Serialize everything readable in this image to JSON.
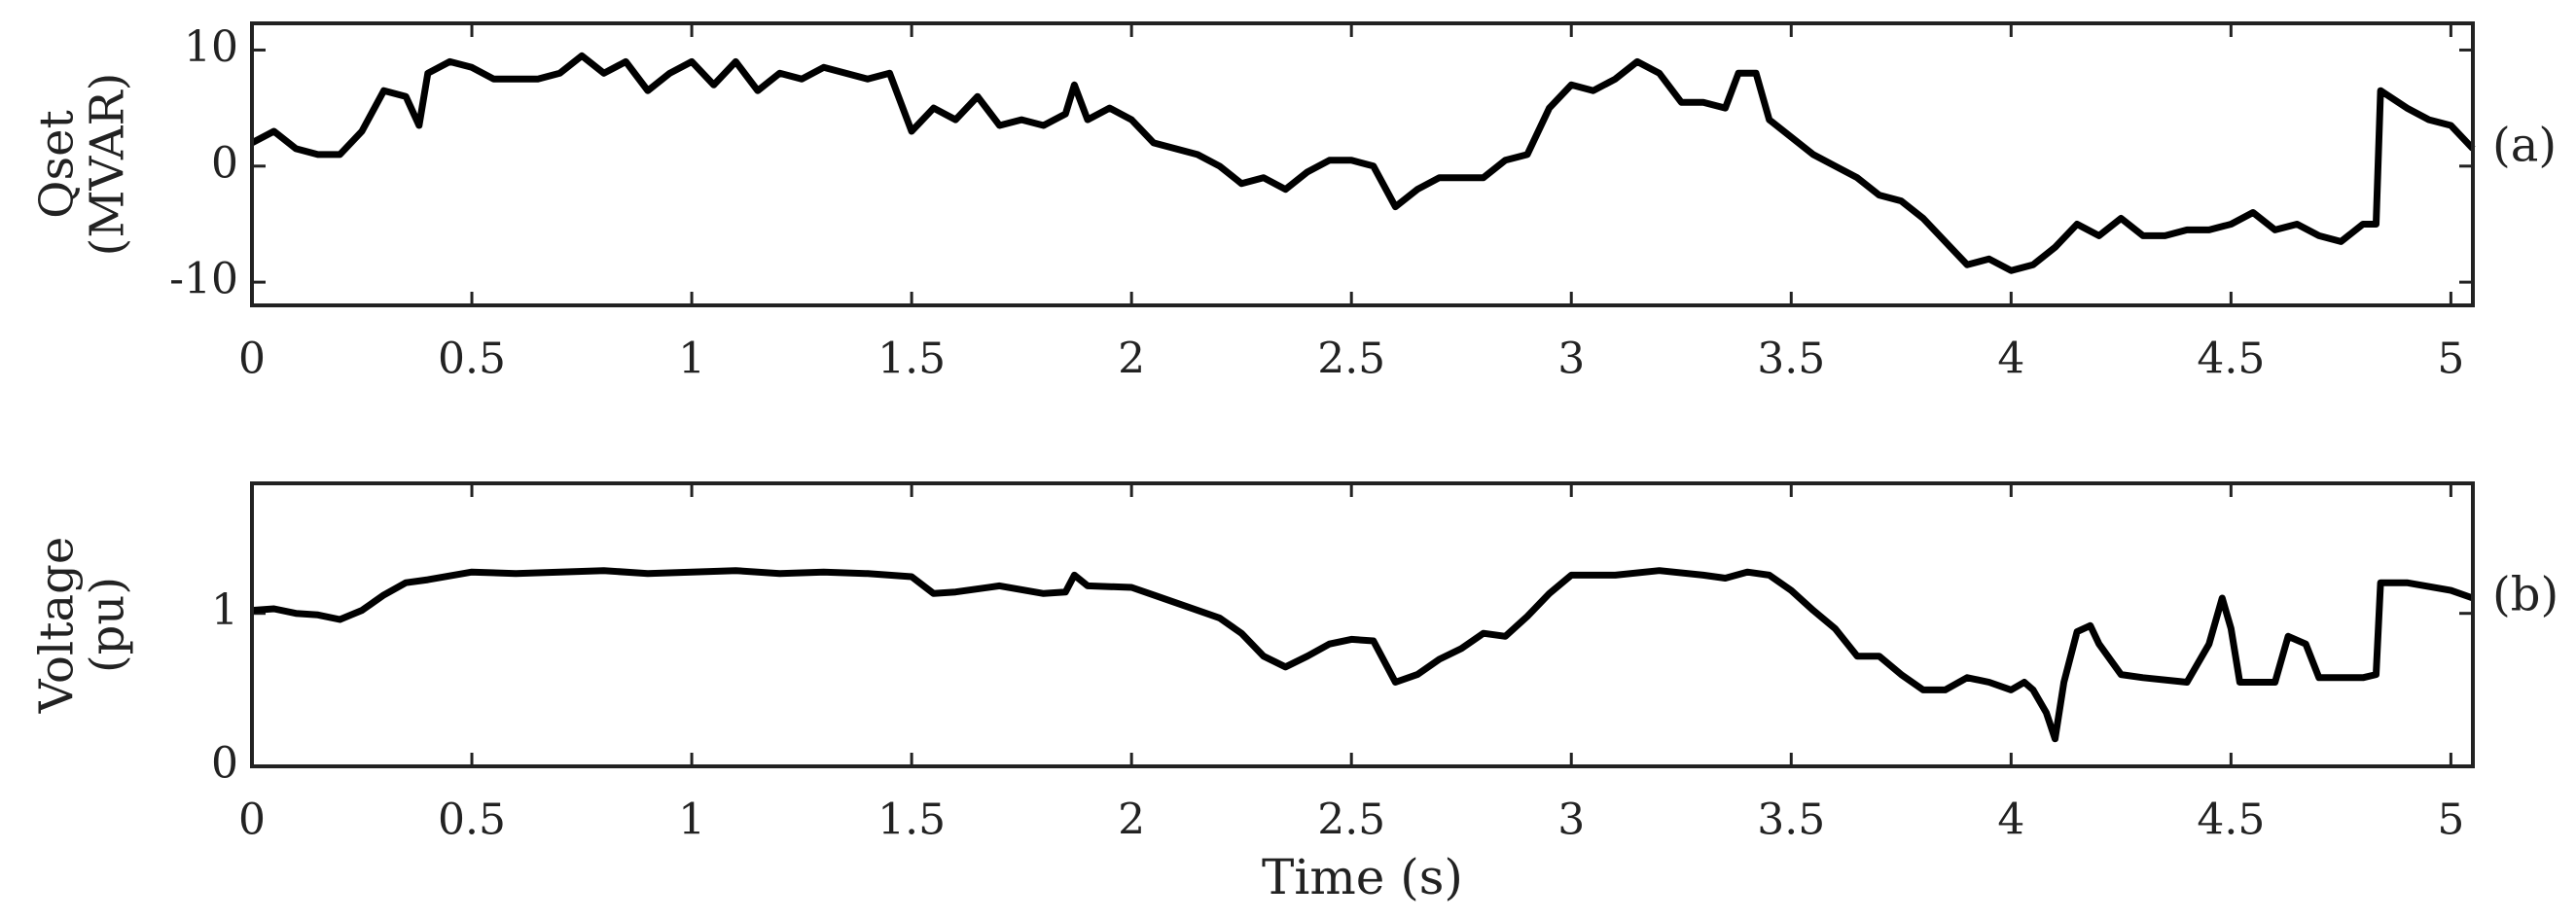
{
  "chart_data": [
    {
      "type": "line",
      "ylabel": [
        "Qset",
        "(MVAR)"
      ],
      "annotation": "(a)",
      "xlim": [
        0,
        5.05
      ],
      "xticks": [
        0,
        0.5,
        1,
        1.5,
        2,
        2.5,
        3,
        3.5,
        4,
        4.5,
        5
      ],
      "ylim": [
        -12,
        12.3
      ],
      "yticks": [
        -10,
        0,
        10
      ],
      "x": [
        0,
        0.05,
        0.1,
        0.15,
        0.2,
        0.25,
        0.3,
        0.35,
        0.38,
        0.4,
        0.45,
        0.5,
        0.55,
        0.6,
        0.65,
        0.7,
        0.75,
        0.8,
        0.85,
        0.9,
        0.95,
        1,
        1.05,
        1.1,
        1.15,
        1.2,
        1.25,
        1.3,
        1.35,
        1.4,
        1.45,
        1.5,
        1.55,
        1.6,
        1.65,
        1.7,
        1.75,
        1.8,
        1.85,
        1.87,
        1.9,
        1.95,
        2,
        2.05,
        2.1,
        2.15,
        2.2,
        2.25,
        2.3,
        2.35,
        2.4,
        2.45,
        2.5,
        2.55,
        2.6,
        2.65,
        2.7,
        2.75,
        2.8,
        2.85,
        2.9,
        2.95,
        3,
        3.05,
        3.1,
        3.15,
        3.2,
        3.25,
        3.3,
        3.35,
        3.38,
        3.42,
        3.45,
        3.5,
        3.55,
        3.6,
        3.65,
        3.7,
        3.75,
        3.8,
        3.85,
        3.9,
        3.95,
        4,
        4.05,
        4.1,
        4.15,
        4.2,
        4.25,
        4.3,
        4.35,
        4.4,
        4.45,
        4.5,
        4.55,
        4.6,
        4.65,
        4.7,
        4.75,
        4.8,
        4.83,
        4.84,
        4.9,
        4.95,
        5,
        5.05
      ],
      "series": [
        {
          "color": "#000000",
          "values": [
            2,
            3,
            1.5,
            1,
            1,
            3,
            6.5,
            6,
            3.5,
            8,
            9,
            8.5,
            7.5,
            7.5,
            7.5,
            8,
            9.5,
            8,
            9,
            6.5,
            8,
            9,
            7,
            9,
            6.5,
            8,
            7.5,
            8.5,
            8,
            7.5,
            8,
            3,
            5,
            4,
            6,
            3.5,
            4,
            3.5,
            4.5,
            7,
            4,
            5,
            4,
            2,
            1.5,
            1,
            0,
            -1.5,
            -1,
            -2,
            -0.5,
            0.5,
            0.5,
            0,
            -3.5,
            -2,
            -1,
            -1,
            -1,
            0.5,
            1,
            5,
            7,
            6.5,
            7.5,
            9,
            8,
            5.5,
            5.5,
            5,
            8,
            8,
            4,
            2.5,
            1,
            0,
            -1,
            -2.5,
            -3,
            -4.5,
            -6.5,
            -8.5,
            -8,
            -9,
            -8.5,
            -7,
            -5,
            -6,
            -4.5,
            -6,
            -6,
            -5.5,
            -5.5,
            -5,
            -4,
            -5.5,
            -5,
            -6,
            -6.5,
            -5,
            -5,
            6.5,
            5,
            4,
            3.5,
            1.5
          ]
        }
      ]
    },
    {
      "type": "line",
      "ylabel": [
        "Voltage",
        "(pu)"
      ],
      "annotation": "(b)",
      "xlabel": "Time (s)",
      "xlim": [
        0,
        5.05
      ],
      "xticks": [
        0,
        0.5,
        1,
        1.5,
        2,
        2.5,
        3,
        3.5,
        4,
        4.5,
        5
      ],
      "ylim": [
        0,
        1.85
      ],
      "yticks": [
        0,
        1
      ],
      "x": [
        0,
        0.05,
        0.1,
        0.15,
        0.2,
        0.25,
        0.3,
        0.35,
        0.4,
        0.5,
        0.6,
        0.7,
        0.8,
        0.9,
        1,
        1.1,
        1.2,
        1.3,
        1.4,
        1.5,
        1.55,
        1.6,
        1.7,
        1.8,
        1.85,
        1.87,
        1.9,
        2,
        2.05,
        2.1,
        2.2,
        2.25,
        2.3,
        2.35,
        2.4,
        2.45,
        2.5,
        2.55,
        2.6,
        2.65,
        2.7,
        2.75,
        2.8,
        2.85,
        2.9,
        2.95,
        3,
        3.1,
        3.2,
        3.3,
        3.35,
        3.4,
        3.45,
        3.5,
        3.55,
        3.6,
        3.65,
        3.7,
        3.75,
        3.8,
        3.85,
        3.9,
        3.95,
        4,
        4.03,
        4.05,
        4.08,
        4.1,
        4.12,
        4.15,
        4.18,
        4.2,
        4.25,
        4.3,
        4.4,
        4.45,
        4.48,
        4.5,
        4.52,
        4.6,
        4.63,
        4.67,
        4.7,
        4.8,
        4.83,
        4.84,
        4.9,
        5,
        5.05
      ],
      "series": [
        {
          "color": "#000000",
          "values": [
            1.02,
            1.03,
            1,
            0.99,
            0.96,
            1.02,
            1.12,
            1.2,
            1.22,
            1.27,
            1.26,
            1.27,
            1.28,
            1.26,
            1.27,
            1.28,
            1.26,
            1.27,
            1.26,
            1.24,
            1.13,
            1.14,
            1.18,
            1.13,
            1.14,
            1.25,
            1.18,
            1.17,
            1.12,
            1.07,
            0.97,
            0.87,
            0.72,
            0.65,
            0.72,
            0.8,
            0.83,
            0.82,
            0.55,
            0.6,
            0.7,
            0.77,
            0.87,
            0.85,
            0.98,
            1.13,
            1.25,
            1.25,
            1.28,
            1.25,
            1.23,
            1.27,
            1.25,
            1.15,
            1.02,
            0.9,
            0.72,
            0.72,
            0.6,
            0.5,
            0.5,
            0.58,
            0.55,
            0.5,
            0.55,
            0.5,
            0.35,
            0.18,
            0.55,
            0.88,
            0.92,
            0.8,
            0.6,
            0.58,
            0.55,
            0.8,
            1.1,
            0.9,
            0.55,
            0.55,
            0.85,
            0.8,
            0.58,
            0.58,
            0.6,
            1.2,
            1.2,
            1.15,
            1.1
          ]
        }
      ]
    }
  ]
}
